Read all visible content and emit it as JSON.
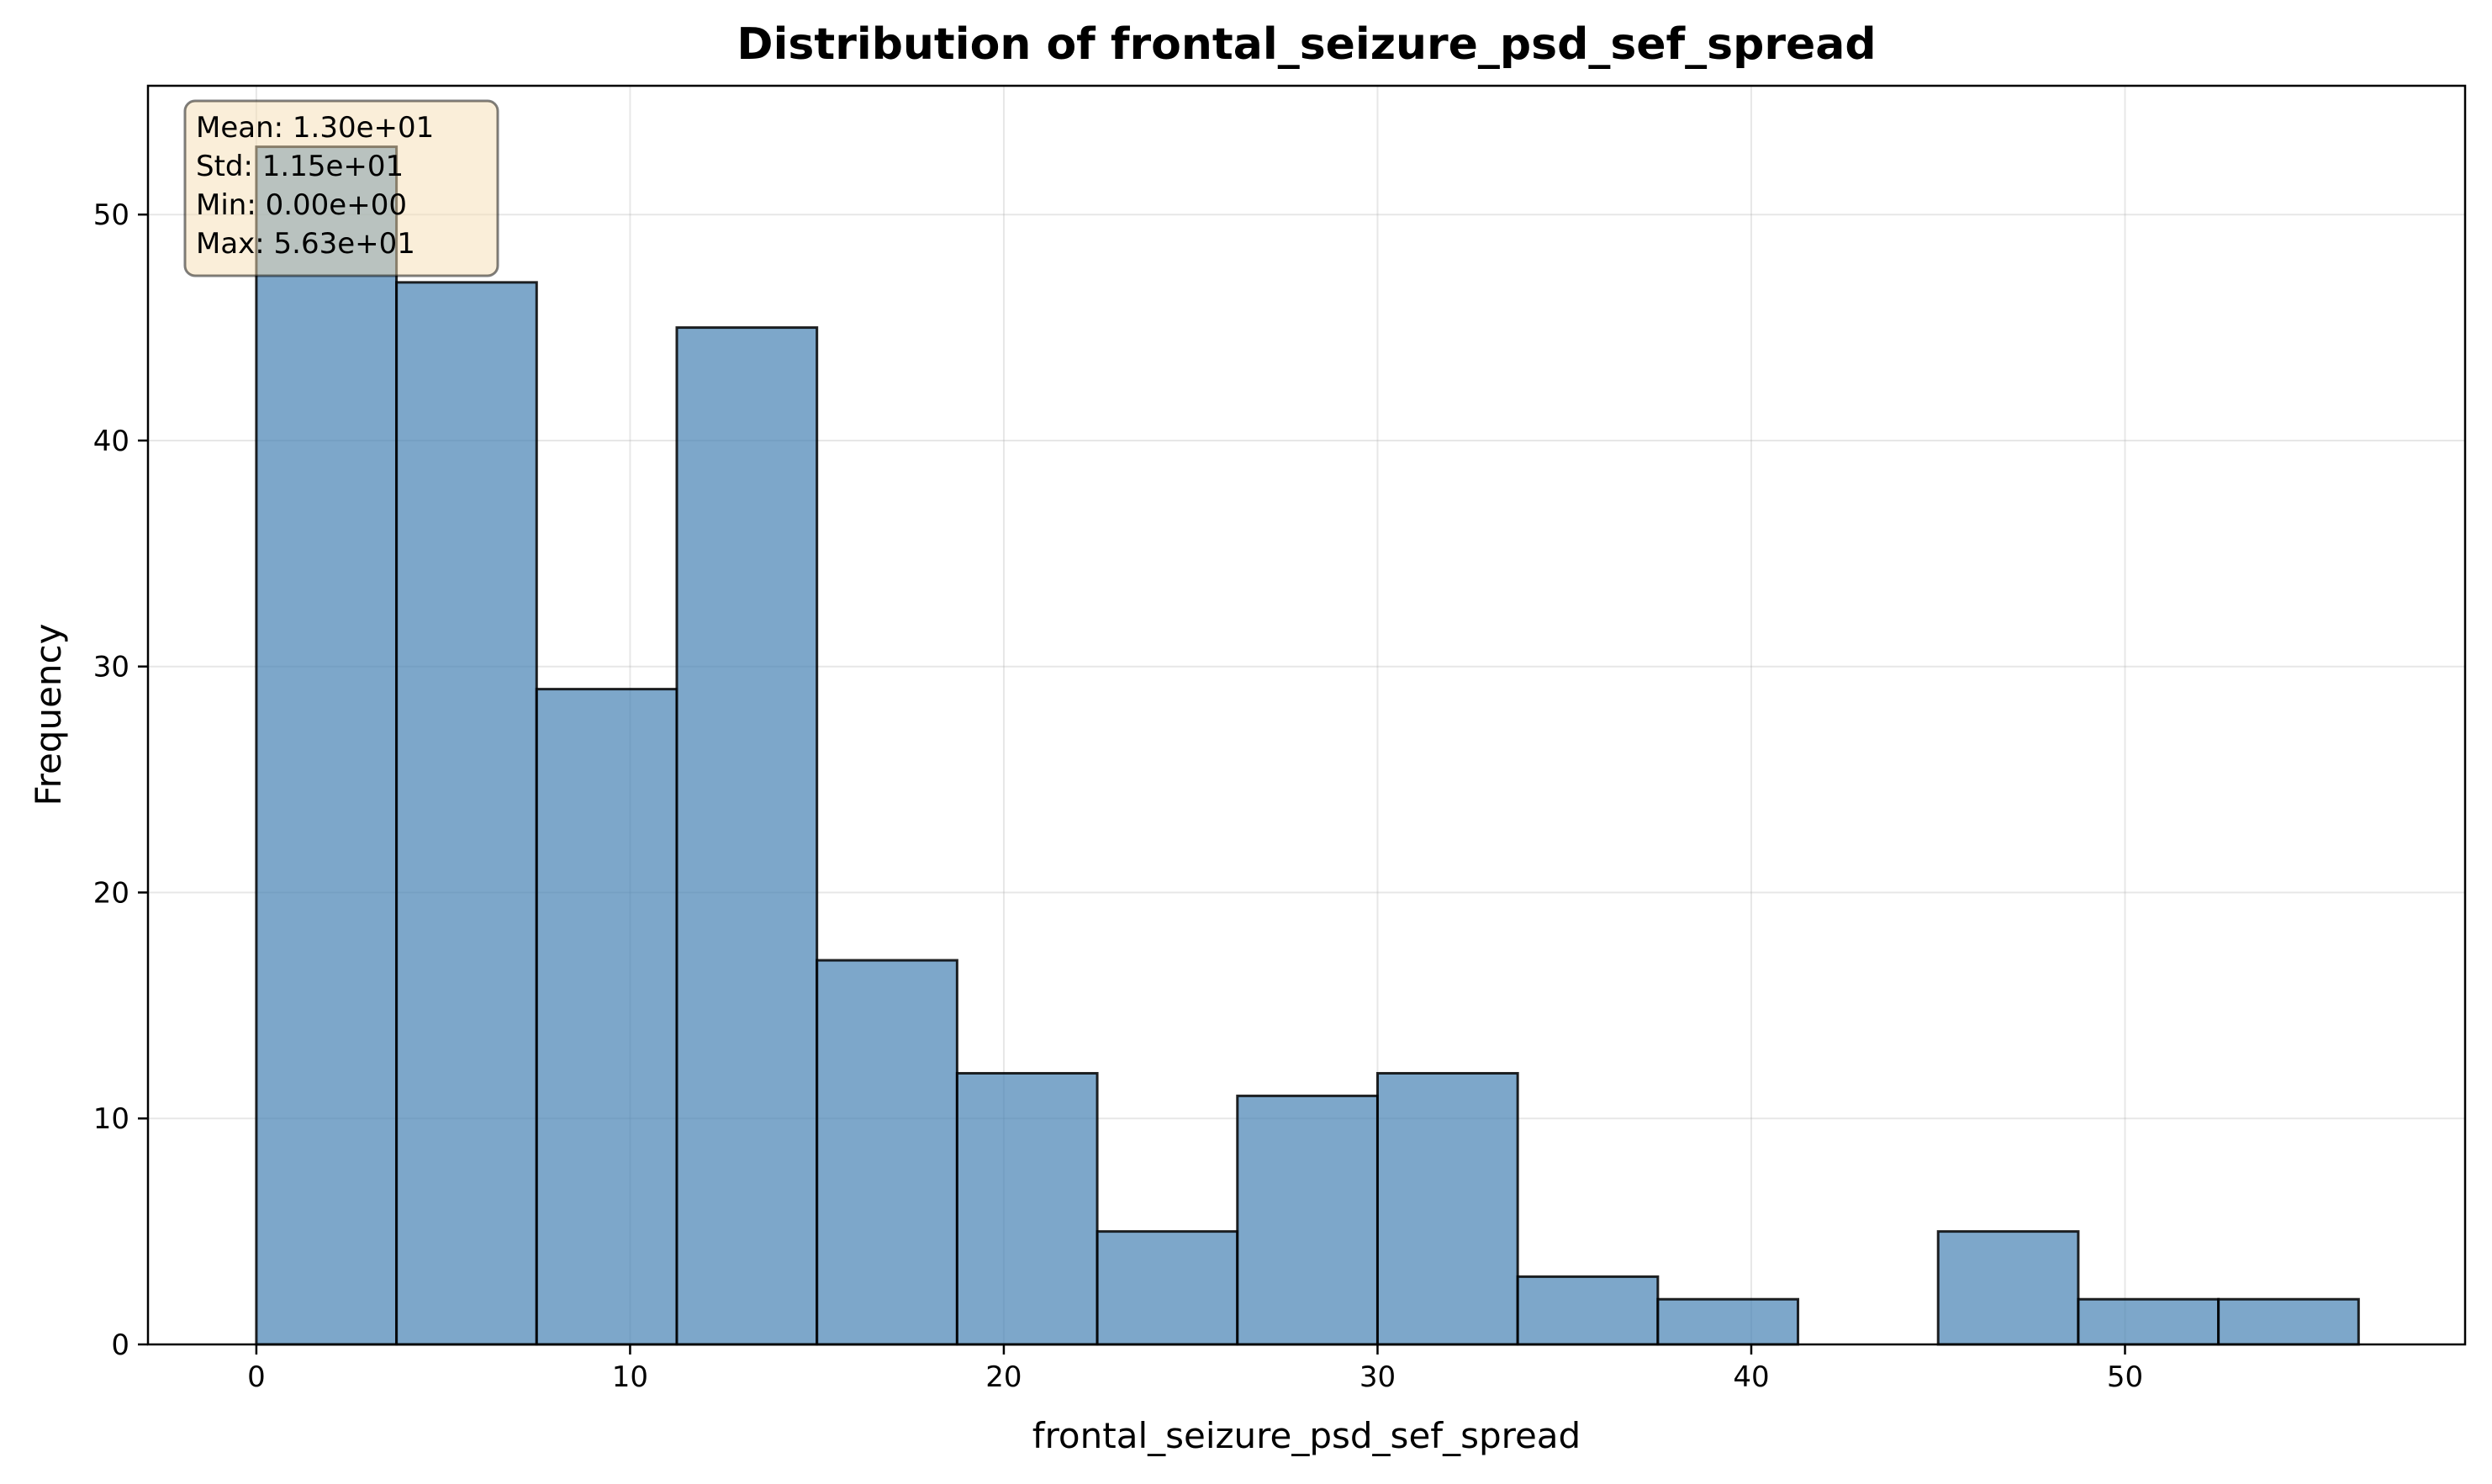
{
  "chart_data": {
    "type": "bar",
    "title": "Distribution of frontal_seizure_psd_sef_spread",
    "xlabel": "frontal_seizure_psd_sef_spread",
    "ylabel": "Frequency",
    "bin_edges": [
      0,
      3.75,
      7.5,
      11.25,
      15.0,
      18.75,
      22.5,
      26.25,
      30.0,
      33.75,
      37.5,
      41.25,
      45.0,
      48.75,
      52.5,
      56.25
    ],
    "values": [
      53,
      47,
      29,
      45,
      17,
      12,
      5,
      11,
      12,
      3,
      2,
      0,
      5,
      2,
      2
    ],
    "xlim": [
      -2.9,
      59.1
    ],
    "ylim": [
      0,
      55.7
    ],
    "xticks": [
      0,
      10,
      20,
      30,
      40,
      50
    ],
    "yticks": [
      0,
      10,
      20,
      30,
      40,
      50
    ],
    "grid": true,
    "bar_color": "#4682b4",
    "stats_box": {
      "lines": [
        "Mean: 1.30e+01",
        "Std: 1.15e+01",
        "Min: 0.00e+00",
        "Max: 5.63e+01"
      ],
      "placement": "top-left",
      "background": "#f5deb3"
    }
  }
}
